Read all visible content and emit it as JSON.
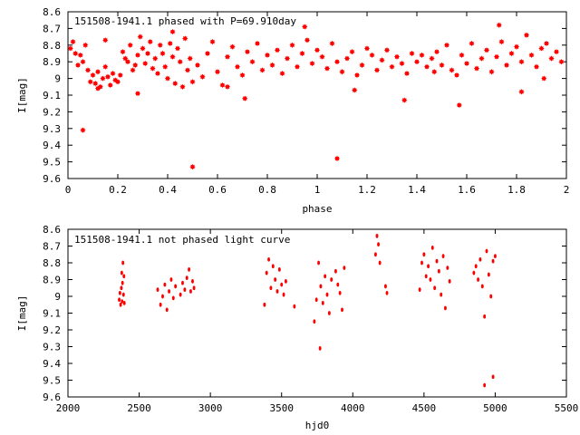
{
  "colors": {
    "points": "#ff0000",
    "frame": "#000000",
    "background": "#ffffff"
  },
  "chart_data": [
    {
      "type": "scatter",
      "title": "151508-1941.1 phased with P=69.910day",
      "xlabel": "phase",
      "ylabel": "I[mag]",
      "xlim": [
        0,
        2
      ],
      "ylim": [
        9.6,
        8.6
      ],
      "y_inverted": true,
      "xticks": [
        "0",
        "0.2",
        "0.4",
        "0.6",
        "0.8",
        "1",
        "1.2",
        "1.4",
        "1.6",
        "1.8",
        "2"
      ],
      "yticks": [
        "8.6",
        "8.7",
        "8.8",
        "8.9",
        "9",
        "9.1",
        "9.2",
        "9.3",
        "9.4",
        "9.5",
        "9.6"
      ],
      "marker": "star",
      "series": [
        {
          "x": [
            0.01,
            0.02,
            0.03,
            0.04,
            0.05,
            0.06,
            0.07,
            0.08,
            0.09,
            0.1,
            0.11,
            0.12,
            0.13,
            0.14,
            0.15,
            0.16,
            0.17,
            0.18,
            0.19,
            0.2,
            0.21,
            0.22,
            0.23,
            0.24,
            0.25,
            0.26,
            0.27,
            0.28,
            0.29,
            0.3,
            0.31,
            0.32,
            0.33,
            0.34,
            0.35,
            0.36,
            0.37,
            0.38,
            0.39,
            0.4,
            0.41,
            0.42,
            0.43,
            0.44,
            0.45,
            0.46,
            0.47,
            0.48,
            0.49,
            0.5,
            0.52,
            0.54,
            0.56,
            0.58,
            0.6,
            0.62,
            0.64,
            0.66,
            0.68,
            0.7,
            0.72,
            0.74,
            0.76,
            0.78,
            0.8,
            0.82,
            0.84,
            0.86,
            0.88,
            0.9,
            0.92,
            0.94,
            0.96,
            0.98,
            1.0,
            1.02,
            1.04,
            1.06,
            1.08,
            1.1,
            1.12,
            1.14,
            1.16,
            1.18,
            1.2,
            1.22,
            1.24,
            1.26,
            1.28,
            1.3,
            1.32,
            1.34,
            1.36,
            1.38,
            1.4,
            1.42,
            1.44,
            1.46,
            1.48,
            1.5,
            1.52,
            1.54,
            1.56,
            1.58,
            1.6,
            1.62,
            1.64,
            1.66,
            1.68,
            1.7,
            1.72,
            1.74,
            1.76,
            1.78,
            1.8,
            1.82,
            1.84,
            1.86,
            1.88,
            1.9,
            1.92,
            1.94,
            1.96,
            1.98,
            0.06,
            0.5,
            1.08,
            1.57,
            0.12,
            0.28,
            0.71,
            1.35,
            1.82,
            0.15,
            0.42,
            0.64,
            0.95,
            1.15,
            1.47,
            1.73,
            1.91
          ],
          "y": [
            8.82,
            8.78,
            8.85,
            8.92,
            8.86,
            8.9,
            8.8,
            8.95,
            9.02,
            8.98,
            9.03,
            8.96,
            9.05,
            9.0,
            8.93,
            8.99,
            9.04,
            8.97,
            9.01,
            9.02,
            8.98,
            8.84,
            8.88,
            8.9,
            8.8,
            8.95,
            8.92,
            8.86,
            8.75,
            8.82,
            8.91,
            8.85,
            8.78,
            8.94,
            8.88,
            8.97,
            8.8,
            8.85,
            8.93,
            9.0,
            8.79,
            8.87,
            9.03,
            8.82,
            8.9,
            9.05,
            8.76,
            8.95,
            8.88,
            9.02,
            8.92,
            8.99,
            8.85,
            8.78,
            8.96,
            9.04,
            8.87,
            8.81,
            8.93,
            8.98,
            8.84,
            8.9,
            8.79,
            8.95,
            8.86,
            8.92,
            8.83,
            8.97,
            8.88,
            8.8,
            8.93,
            8.85,
            8.77,
            8.91,
            8.83,
            8.87,
            8.94,
            8.79,
            8.9,
            8.96,
            8.88,
            8.84,
            8.98,
            8.92,
            8.82,
            8.86,
            8.95,
            8.89,
            8.83,
            8.93,
            8.87,
            8.91,
            8.97,
            8.85,
            8.9,
            8.86,
            8.93,
            8.88,
            8.84,
            8.92,
            8.8,
            8.95,
            8.98,
            8.86,
            8.91,
            8.79,
            8.94,
            8.88,
            8.83,
            8.96,
            8.87,
            8.78,
            8.92,
            8.85,
            8.81,
            8.9,
            8.74,
            8.86,
            8.93,
            8.82,
            8.79,
            8.88,
            8.84,
            8.9,
            9.31,
            9.53,
            9.48,
            9.16,
            9.06,
            9.09,
            9.12,
            9.13,
            9.08,
            8.77,
            8.72,
            9.05,
            8.69,
            9.07,
            8.96,
            8.68,
            9.0
          ]
        }
      ]
    },
    {
      "type": "scatter",
      "title": "151508-1941.1 not phased light curve",
      "xlabel": "hjd0",
      "ylabel": "I[mag]",
      "xlim": [
        2000,
        5500
      ],
      "ylim": [
        9.6,
        8.6
      ],
      "y_inverted": true,
      "xticks": [
        "2000",
        "2500",
        "3000",
        "3500",
        "4000",
        "4500",
        "5000",
        "5500"
      ],
      "yticks": [
        "8.6",
        "8.7",
        "8.8",
        "8.9",
        "9",
        "9.1",
        "9.2",
        "9.3",
        "9.4",
        "9.5",
        "9.6"
      ],
      "marker": "dot",
      "series": [
        {
          "x": [
            2360,
            2365,
            2370,
            2375,
            2378,
            2380,
            2383,
            2386,
            2390,
            2393,
            2396,
            2630,
            2650,
            2665,
            2680,
            2695,
            2710,
            2725,
            2740,
            2755,
            2790,
            2805,
            2820,
            2835,
            2850,
            2862,
            2875,
            2885,
            3380,
            3395,
            3410,
            3425,
            3440,
            3455,
            3470,
            3485,
            3500,
            3515,
            3530,
            3590,
            3730,
            3745,
            3760,
            3775,
            3790,
            3805,
            3820,
            3835,
            3850,
            3880,
            3895,
            3910,
            3925,
            3940,
            4160,
            4170,
            4180,
            4190,
            4230,
            4240,
            4470,
            4485,
            4500,
            4515,
            4530,
            4545,
            4560,
            4575,
            4590,
            4605,
            4620,
            4635,
            4650,
            4665,
            4680,
            4850,
            4865,
            4880,
            4895,
            4910,
            4925,
            4940,
            4955,
            4970,
            4985,
            5000,
            3770,
            4925,
            4985
          ],
          "y": [
            9.02,
            8.98,
            9.05,
            8.95,
            8.86,
            9.03,
            8.92,
            8.8,
            8.99,
            8.88,
            9.04,
            8.96,
            9.05,
            9.0,
            8.93,
            9.08,
            8.97,
            8.9,
            9.01,
            8.94,
            8.99,
            8.92,
            8.96,
            8.89,
            8.84,
            8.97,
            8.91,
            8.95,
            9.05,
            8.86,
            8.78,
            8.95,
            8.82,
            8.9,
            8.97,
            8.84,
            8.93,
            8.99,
            8.91,
            9.06,
            9.15,
            9.02,
            8.8,
            8.94,
            9.04,
            8.88,
            8.99,
            9.1,
            8.9,
            8.85,
            8.93,
            8.98,
            9.08,
            8.83,
            8.75,
            8.64,
            8.69,
            8.8,
            8.94,
            8.98,
            8.96,
            8.8,
            8.75,
            8.88,
            8.82,
            8.9,
            8.71,
            8.95,
            8.79,
            8.85,
            8.99,
            8.76,
            9.07,
            8.83,
            8.91,
            8.86,
            8.82,
            8.9,
            8.78,
            8.94,
            9.12,
            8.73,
            8.87,
            9.0,
            8.79,
            8.76,
            9.31,
            9.53,
            9.48
          ]
        }
      ]
    }
  ]
}
